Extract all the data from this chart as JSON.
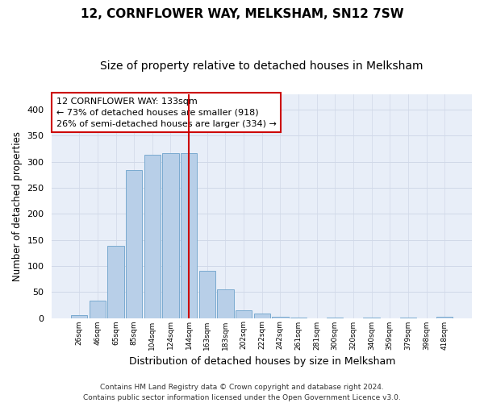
{
  "title": "12, CORNFLOWER WAY, MELKSHAM, SN12 7SW",
  "subtitle": "Size of property relative to detached houses in Melksham",
  "xlabel": "Distribution of detached houses by size in Melksham",
  "ylabel": "Number of detached properties",
  "bar_labels": [
    "26sqm",
    "46sqm",
    "65sqm",
    "85sqm",
    "104sqm",
    "124sqm",
    "144sqm",
    "163sqm",
    "183sqm",
    "202sqm",
    "222sqm",
    "242sqm",
    "261sqm",
    "281sqm",
    "300sqm",
    "320sqm",
    "340sqm",
    "359sqm",
    "379sqm",
    "398sqm",
    "418sqm"
  ],
  "bar_values": [
    5,
    34,
    138,
    284,
    313,
    316,
    316,
    90,
    55,
    15,
    8,
    3,
    1,
    0,
    1,
    0,
    1,
    0,
    1,
    0,
    2
  ],
  "bar_color": "#b8cfe8",
  "bar_edge_color": "#7aaad0",
  "vline_color": "#cc0000",
  "annotation_text": "12 CORNFLOWER WAY: 133sqm\n← 73% of detached houses are smaller (918)\n26% of semi-detached houses are larger (334) →",
  "annotation_box_color": "#ffffff",
  "annotation_box_edge": "#cc0000",
  "grid_color": "#d0d8e8",
  "background_color": "#ffffff",
  "plot_bg_color": "#e8eef8",
  "ylim": [
    0,
    430
  ],
  "yticks": [
    0,
    50,
    100,
    150,
    200,
    250,
    300,
    350,
    400
  ],
  "footnote": "Contains HM Land Registry data © Crown copyright and database right 2024.\nContains public sector information licensed under the Open Government Licence v3.0.",
  "title_fontsize": 11,
  "subtitle_fontsize": 10,
  "xlabel_fontsize": 9,
  "ylabel_fontsize": 8.5,
  "annotation_fontsize": 8,
  "footnote_fontsize": 6.5,
  "vline_pos": 6.0
}
